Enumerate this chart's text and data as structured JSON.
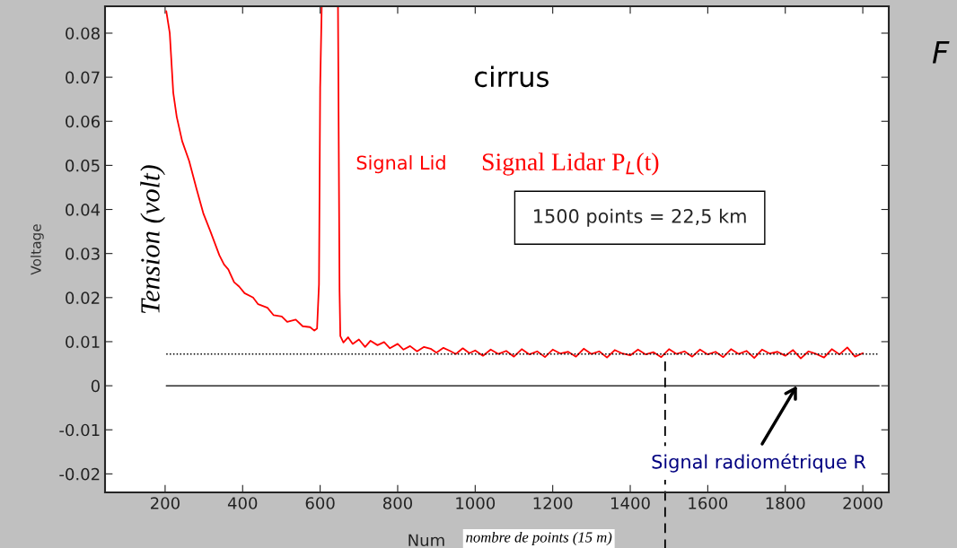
{
  "chart_data": {
    "type": "line",
    "xlabel": "Num",
    "ylabel": "Voltage",
    "xlim": [
      45,
      2067
    ],
    "ylim": [
      -0.0242,
      0.0861
    ],
    "xticks": [
      200,
      400,
      600,
      800,
      1000,
      1200,
      1400,
      1600,
      1800,
      2000
    ],
    "yticks": [
      -0.02,
      -0.01,
      0,
      0.01,
      0.02,
      0.03,
      0.04,
      0.05,
      0.06,
      0.07,
      0.08
    ],
    "grid": false,
    "legend": false,
    "marker": "none",
    "line_style": "solid",
    "series": [
      {
        "color": "#ff0000",
        "x": [
          203,
          212,
          221,
          230,
          244,
          262,
          281,
          299,
          317,
          340,
          352,
          363,
          378,
          391,
          405,
          427,
          440,
          464,
          480,
          501,
          515,
          537,
          555,
          574,
          585,
          592,
          597,
          600,
          604,
          620,
          646,
          650,
          652,
          660,
          672,
          684,
          700,
          716,
          730,
          748,
          765,
          780,
          800,
          815,
          832,
          850,
          868,
          885,
          900,
          918,
          935,
          950,
          968,
          985,
          1000,
          1020,
          1040,
          1060,
          1080,
          1100,
          1120,
          1140,
          1160,
          1180,
          1200,
          1220,
          1240,
          1260,
          1280,
          1300,
          1320,
          1340,
          1360,
          1380,
          1400,
          1420,
          1440,
          1460,
          1480,
          1500,
          1520,
          1540,
          1560,
          1580,
          1600,
          1620,
          1640,
          1660,
          1680,
          1700,
          1720,
          1740,
          1760,
          1780,
          1800,
          1820,
          1840,
          1860,
          1880,
          1900,
          1920,
          1940,
          1960,
          1980,
          2000
        ],
        "values": [
          0.085,
          0.08,
          0.0665,
          0.061,
          0.0555,
          0.051,
          0.0447,
          0.039,
          0.035,
          0.0296,
          0.0275,
          0.0264,
          0.0235,
          0.0225,
          0.021,
          0.02,
          0.0185,
          0.0177,
          0.016,
          0.0157,
          0.0145,
          0.015,
          0.0135,
          0.0133,
          0.0125,
          0.013,
          0.023,
          0.0676,
          0.086,
          null,
          0.086,
          0.0217,
          0.0113,
          0.0098,
          0.011,
          0.0095,
          0.0105,
          0.0088,
          0.0102,
          0.0092,
          0.0099,
          0.0085,
          0.0095,
          0.0082,
          0.009,
          0.0078,
          0.0088,
          0.0084,
          0.0075,
          0.0086,
          0.0079,
          0.0072,
          0.0085,
          0.0074,
          0.008,
          0.0068,
          0.0082,
          0.0072,
          0.0079,
          0.0066,
          0.0083,
          0.0071,
          0.0078,
          0.0065,
          0.0082,
          0.0073,
          0.0077,
          0.0066,
          0.0084,
          0.0072,
          0.0078,
          0.0064,
          0.0081,
          0.0073,
          0.0069,
          0.0082,
          0.0071,
          0.0076,
          0.0065,
          0.0083,
          0.0072,
          0.0078,
          0.0066,
          0.0082,
          0.0071,
          0.0077,
          0.0065,
          0.0083,
          0.0072,
          0.0079,
          0.0063,
          0.0082,
          0.0073,
          0.0077,
          0.0068,
          0.0081,
          0.0062,
          0.0078,
          0.0072,
          0.0064,
          0.0083,
          0.0071,
          0.0087,
          0.0066,
          0.0074
        ]
      }
    ],
    "ref_lines": [
      {
        "axis": "y",
        "value": 0.0072,
        "color": "#000000",
        "line_style": "dotted"
      },
      {
        "axis": "y",
        "value": 0,
        "color": "#000000",
        "line_style": "solid"
      },
      {
        "axis": "x",
        "value": 1490,
        "color": "#000000",
        "line_style": "dashed"
      }
    ],
    "annotations": [
      "cirrus",
      "Signal Lid",
      "Signal Lidar P$_{L}$(t)",
      "Tension (volt)",
      "1500 points = 22,5 km",
      {
        "text": "Signal radiométrique R",
        "x": 1830,
        "y": 0
      },
      "nombre de points (15 m)",
      "F"
    ]
  }
}
